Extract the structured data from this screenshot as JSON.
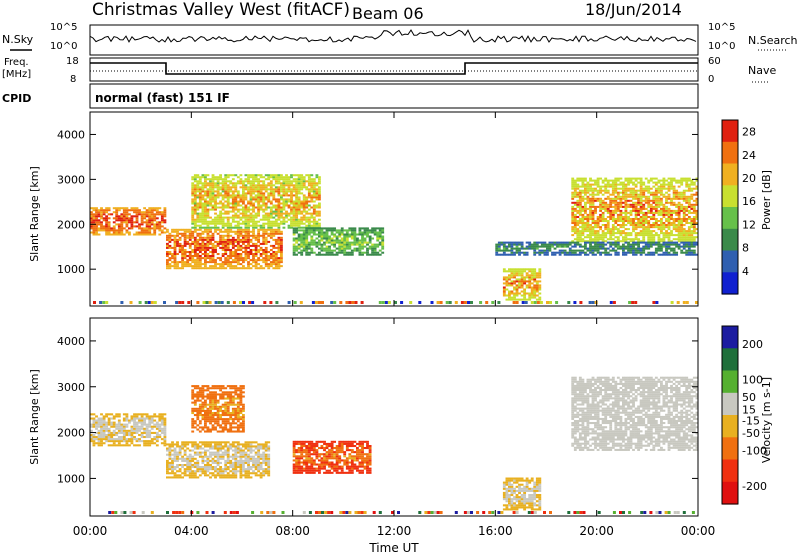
{
  "header": {
    "title": "Christmas Valley West (fitACF)",
    "beam": "Beam 06",
    "date": "18/Jun/2014"
  },
  "panels": {
    "nsky_label": "N.Sky",
    "nsearch_label": "N.Search",
    "freq_label": "Freq.",
    "freq_unit": "[MHz]",
    "nave_label": "Nave",
    "cpid_label": "CPID",
    "cpid_text": "normal (fast) 151 IF",
    "noise_ticks_left": [
      "10^5",
      "10^0"
    ],
    "noise_ticks_right": [
      "10^5",
      "10^0"
    ],
    "freq_ticks_left": [
      "18",
      "8"
    ],
    "nave_ticks_right": [
      "60",
      "0"
    ]
  },
  "colors": {
    "power": [
      "#1020d0",
      "#2f5fb0",
      "#3a8a4a",
      "#66c04a",
      "#c8e030",
      "#f0b020",
      "#f07010",
      "#e02010"
    ],
    "velocity": [
      "#1c1ca0",
      "#1f6f3a",
      "#55b030",
      "#c8c8c0",
      "#e8b020",
      "#f07010",
      "#f03010",
      "#e01010"
    ]
  },
  "chart_data": [
    {
      "type": "heatmap",
      "name": "Power",
      "xlabel": "Time UT",
      "ylabel": "Slant Range [km]",
      "x_ticks": [
        "00:00",
        "04:00",
        "08:00",
        "12:00",
        "16:00",
        "20:00",
        "00:00"
      ],
      "xlim_hours": [
        0,
        24
      ],
      "y_ticks": [
        1000,
        2000,
        3000,
        4000
      ],
      "ylim_km": [
        180,
        4500
      ],
      "colorbar": {
        "label": "Power [dB]",
        "ticks": [
          4,
          8,
          12,
          16,
          20,
          24,
          28
        ],
        "range": [
          0,
          30
        ]
      },
      "features": [
        {
          "t_start": 0.0,
          "t_end": 3.0,
          "range_start": 1750,
          "range_end": 2350,
          "value_min": 18,
          "value_max": 30
        },
        {
          "t_start": 3.0,
          "t_end": 7.5,
          "range_start": 1000,
          "range_end": 1900,
          "value_min": 16,
          "value_max": 30
        },
        {
          "t_start": 4.0,
          "t_end": 9.0,
          "range_start": 1900,
          "range_end": 3100,
          "value_min": 10,
          "value_max": 26
        },
        {
          "t_start": 8.0,
          "t_end": 11.5,
          "range_start": 1300,
          "range_end": 1900,
          "value_min": 6,
          "value_max": 18
        },
        {
          "t_start": 16.3,
          "t_end": 17.8,
          "range_start": 300,
          "range_end": 1000,
          "value_min": 10,
          "value_max": 28
        },
        {
          "t_start": 19.0,
          "t_end": 24.0,
          "range_start": 1600,
          "range_end": 3000,
          "value_min": 10,
          "value_max": 28
        },
        {
          "t_start": 16.0,
          "t_end": 24.0,
          "range_start": 1300,
          "range_end": 1600,
          "value_min": 4,
          "value_max": 12
        }
      ]
    },
    {
      "type": "heatmap",
      "name": "Velocity",
      "xlabel": "Time UT",
      "ylabel": "Slant Range [km]",
      "x_ticks": [
        "00:00",
        "04:00",
        "08:00",
        "12:00",
        "16:00",
        "20:00",
        "00:00"
      ],
      "xlim_hours": [
        0,
        24
      ],
      "y_ticks": [
        1000,
        2000,
        3000,
        4000
      ],
      "ylim_km": [
        180,
        4500
      ],
      "colorbar": {
        "label": "Velocity [m s-1]",
        "ticks": [
          200,
          100,
          50,
          15,
          -15,
          -50,
          -100,
          -200
        ],
        "range": [
          -250,
          250
        ]
      },
      "features": [
        {
          "t_start": 0.0,
          "t_end": 3.0,
          "range_start": 1700,
          "range_end": 2400,
          "value_min": -15,
          "value_max": 15
        },
        {
          "t_start": 3.0,
          "t_end": 7.0,
          "range_start": 1000,
          "range_end": 1800,
          "value_min": -15,
          "value_max": 15
        },
        {
          "t_start": 4.0,
          "t_end": 6.0,
          "range_start": 2000,
          "range_end": 3000,
          "value_min": -100,
          "value_max": -50
        },
        {
          "t_start": 8.0,
          "t_end": 11.0,
          "range_start": 1100,
          "range_end": 1800,
          "value_min": -200,
          "value_max": -50
        },
        {
          "t_start": 16.3,
          "t_end": 17.8,
          "range_start": 300,
          "range_end": 1000,
          "value_min": -15,
          "value_max": 15
        },
        {
          "t_start": 19.0,
          "t_end": 24.0,
          "range_start": 1600,
          "range_end": 3200,
          "value_min": -15,
          "value_max": 50
        }
      ]
    }
  ]
}
